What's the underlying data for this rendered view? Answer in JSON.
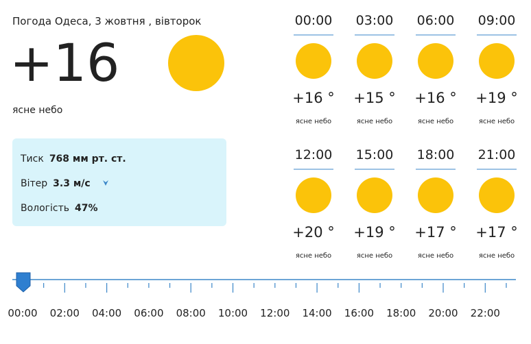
{
  "header": {
    "title": "Погода Одеса, 3 жовтня , вівторок"
  },
  "current": {
    "temperature": "+16",
    "condition": "ясне небо"
  },
  "details": [
    {
      "label": "Тиск",
      "value": "768 мм рт. ст."
    },
    {
      "label": "Вітер",
      "value": "3.3 м/с"
    },
    {
      "label": "Вологість",
      "value": "47%"
    }
  ],
  "hourly": [
    {
      "time": "00:00",
      "temperature": "+16 °",
      "condition": "ясне небо"
    },
    {
      "time": "03:00",
      "temperature": "+15 °",
      "condition": "ясне небо"
    },
    {
      "time": "06:00",
      "temperature": "+16 °",
      "condition": "ясне небо"
    },
    {
      "time": "09:00",
      "temperature": "+19 °",
      "condition": "ясне небо"
    },
    {
      "time": "12:00",
      "temperature": "+20 °",
      "condition": "ясне небо"
    },
    {
      "time": "15:00",
      "temperature": "+19 °",
      "condition": "ясне небо"
    },
    {
      "time": "18:00",
      "temperature": "+17 °",
      "condition": "ясне небо"
    },
    {
      "time": "21:00",
      "temperature": "+17 °",
      "condition": "ясне небо"
    }
  ],
  "timeline": {
    "labels": [
      "00:00",
      "02:00",
      "04:00",
      "06:00",
      "08:00",
      "10:00",
      "12:00",
      "14:00",
      "16:00",
      "18:00",
      "20:00",
      "22:00"
    ]
  }
}
